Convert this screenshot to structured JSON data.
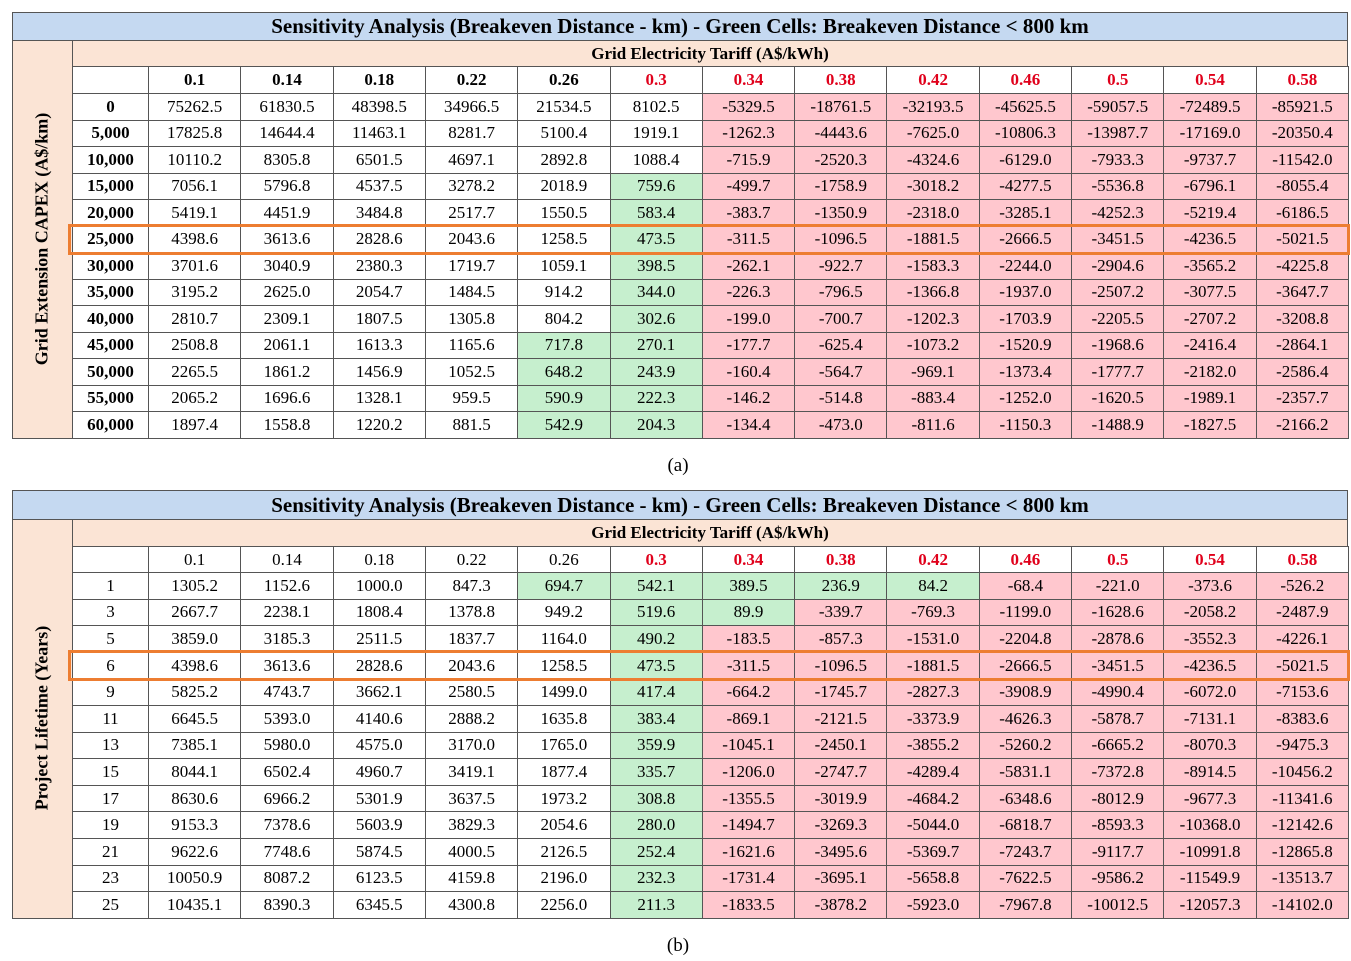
{
  "tables": [
    {
      "title": "Sensitivity Analysis (Breakeven Distance - km) - Green Cells: Breakeven Distance < 800 km",
      "column_group": "Grid Electricity Tariff (A$/kWh)",
      "row_group": "Grid Extension CAPEX (A$/km)",
      "caption": "(a)",
      "bold_headers": true,
      "red_header_from": 5,
      "highlight_row": 5,
      "columns": [
        "0.1",
        "0.14",
        "0.18",
        "0.22",
        "0.26",
        "0.3",
        "0.34",
        "0.38",
        "0.42",
        "0.46",
        "0.5",
        "0.54",
        "0.58"
      ],
      "rows": [
        {
          "label": "0",
          "values": [
            "75262.5",
            "61830.5",
            "48398.5",
            "34966.5",
            "21534.5",
            "8102.5",
            "-5329.5",
            "-18761.5",
            "-32193.5",
            "-45625.5",
            "-59057.5",
            "-72489.5",
            "-85921.5"
          ]
        },
        {
          "label": "5,000",
          "values": [
            "17825.8",
            "14644.4",
            "11463.1",
            "8281.7",
            "5100.4",
            "1919.1",
            "-1262.3",
            "-4443.6",
            "-7625.0",
            "-10806.3",
            "-13987.7",
            "-17169.0",
            "-20350.4"
          ]
        },
        {
          "label": "10,000",
          "values": [
            "10110.2",
            "8305.8",
            "6501.5",
            "4697.1",
            "2892.8",
            "1088.4",
            "-715.9",
            "-2520.3",
            "-4324.6",
            "-6129.0",
            "-7933.3",
            "-9737.7",
            "-11542.0"
          ]
        },
        {
          "label": "15,000",
          "values": [
            "7056.1",
            "5796.8",
            "4537.5",
            "3278.2",
            "2018.9",
            "759.6",
            "-499.7",
            "-1758.9",
            "-3018.2",
            "-4277.5",
            "-5536.8",
            "-6796.1",
            "-8055.4"
          ]
        },
        {
          "label": "20,000",
          "values": [
            "5419.1",
            "4451.9",
            "3484.8",
            "2517.7",
            "1550.5",
            "583.4",
            "-383.7",
            "-1350.9",
            "-2318.0",
            "-3285.1",
            "-4252.3",
            "-5219.4",
            "-6186.5"
          ]
        },
        {
          "label": "25,000",
          "values": [
            "4398.6",
            "3613.6",
            "2828.6",
            "2043.6",
            "1258.5",
            "473.5",
            "-311.5",
            "-1096.5",
            "-1881.5",
            "-2666.5",
            "-3451.5",
            "-4236.5",
            "-5021.5"
          ]
        },
        {
          "label": "30,000",
          "values": [
            "3701.6",
            "3040.9",
            "2380.3",
            "1719.7",
            "1059.1",
            "398.5",
            "-262.1",
            "-922.7",
            "-1583.3",
            "-2244.0",
            "-2904.6",
            "-3565.2",
            "-4225.8"
          ]
        },
        {
          "label": "35,000",
          "values": [
            "3195.2",
            "2625.0",
            "2054.7",
            "1484.5",
            "914.2",
            "344.0",
            "-226.3",
            "-796.5",
            "-1366.8",
            "-1937.0",
            "-2507.2",
            "-3077.5",
            "-3647.7"
          ]
        },
        {
          "label": "40,000",
          "values": [
            "2810.7",
            "2309.1",
            "1807.5",
            "1305.8",
            "804.2",
            "302.6",
            "-199.0",
            "-700.7",
            "-1202.3",
            "-1703.9",
            "-2205.5",
            "-2707.2",
            "-3208.8"
          ]
        },
        {
          "label": "45,000",
          "values": [
            "2508.8",
            "2061.1",
            "1613.3",
            "1165.6",
            "717.8",
            "270.1",
            "-177.7",
            "-625.4",
            "-1073.2",
            "-1520.9",
            "-1968.6",
            "-2416.4",
            "-2864.1"
          ]
        },
        {
          "label": "50,000",
          "values": [
            "2265.5",
            "1861.2",
            "1456.9",
            "1052.5",
            "648.2",
            "243.9",
            "-160.4",
            "-564.7",
            "-969.1",
            "-1373.4",
            "-1777.7",
            "-2182.0",
            "-2586.4"
          ]
        },
        {
          "label": "55,000",
          "values": [
            "2065.2",
            "1696.6",
            "1328.1",
            "959.5",
            "590.9",
            "222.3",
            "-146.2",
            "-514.8",
            "-883.4",
            "-1252.0",
            "-1620.5",
            "-1989.1",
            "-2357.7"
          ]
        },
        {
          "label": "60,000",
          "values": [
            "1897.4",
            "1558.8",
            "1220.2",
            "881.5",
            "542.9",
            "204.3",
            "-134.4",
            "-473.0",
            "-811.6",
            "-1150.3",
            "-1488.9",
            "-1827.5",
            "-2166.2"
          ]
        }
      ]
    },
    {
      "title": "Sensitivity Analysis (Breakeven Distance - km) - Green Cells: Breakeven Distance < 800 km",
      "column_group": "Grid Electricity Tariff (A$/kWh)",
      "row_group": "Project Lifetime (Years)",
      "caption": "(b)",
      "bold_headers": false,
      "red_header_from": 5,
      "highlight_row": 3,
      "columns": [
        "0.1",
        "0.14",
        "0.18",
        "0.22",
        "0.26",
        "0.3",
        "0.34",
        "0.38",
        "0.42",
        "0.46",
        "0.5",
        "0.54",
        "0.58"
      ],
      "rows": [
        {
          "label": "1",
          "values": [
            "1305.2",
            "1152.6",
            "1000.0",
            "847.3",
            "694.7",
            "542.1",
            "389.5",
            "236.9",
            "84.2",
            "-68.4",
            "-221.0",
            "-373.6",
            "-526.2"
          ]
        },
        {
          "label": "3",
          "values": [
            "2667.7",
            "2238.1",
            "1808.4",
            "1378.8",
            "949.2",
            "519.6",
            "89.9",
            "-339.7",
            "-769.3",
            "-1199.0",
            "-1628.6",
            "-2058.2",
            "-2487.9"
          ]
        },
        {
          "label": "5",
          "values": [
            "3859.0",
            "3185.3",
            "2511.5",
            "1837.7",
            "1164.0",
            "490.2",
            "-183.5",
            "-857.3",
            "-1531.0",
            "-2204.8",
            "-2878.6",
            "-3552.3",
            "-4226.1"
          ]
        },
        {
          "label": "6",
          "values": [
            "4398.6",
            "3613.6",
            "2828.6",
            "2043.6",
            "1258.5",
            "473.5",
            "-311.5",
            "-1096.5",
            "-1881.5",
            "-2666.5",
            "-3451.5",
            "-4236.5",
            "-5021.5"
          ]
        },
        {
          "label": "9",
          "values": [
            "5825.2",
            "4743.7",
            "3662.1",
            "2580.5",
            "1499.0",
            "417.4",
            "-664.2",
            "-1745.7",
            "-2827.3",
            "-3908.9",
            "-4990.4",
            "-6072.0",
            "-7153.6"
          ]
        },
        {
          "label": "11",
          "values": [
            "6645.5",
            "5393.0",
            "4140.6",
            "2888.2",
            "1635.8",
            "383.4",
            "-869.1",
            "-2121.5",
            "-3373.9",
            "-4626.3",
            "-5878.7",
            "-7131.1",
            "-8383.6"
          ]
        },
        {
          "label": "13",
          "values": [
            "7385.1",
            "5980.0",
            "4575.0",
            "3170.0",
            "1765.0",
            "359.9",
            "-1045.1",
            "-2450.1",
            "-3855.2",
            "-5260.2",
            "-6665.2",
            "-8070.3",
            "-9475.3"
          ]
        },
        {
          "label": "15",
          "values": [
            "8044.1",
            "6502.4",
            "4960.7",
            "3419.1",
            "1877.4",
            "335.7",
            "-1206.0",
            "-2747.7",
            "-4289.4",
            "-5831.1",
            "-7372.8",
            "-8914.5",
            "-10456.2"
          ]
        },
        {
          "label": "17",
          "values": [
            "8630.6",
            "6966.2",
            "5301.9",
            "3637.5",
            "1973.2",
            "308.8",
            "-1355.5",
            "-3019.9",
            "-4684.2",
            "-6348.6",
            "-8012.9",
            "-9677.3",
            "-11341.6"
          ]
        },
        {
          "label": "19",
          "values": [
            "9153.3",
            "7378.6",
            "5603.9",
            "3829.3",
            "2054.6",
            "280.0",
            "-1494.7",
            "-3269.3",
            "-5044.0",
            "-6818.7",
            "-8593.3",
            "-10368.0",
            "-12142.6"
          ]
        },
        {
          "label": "21",
          "values": [
            "9622.6",
            "7748.6",
            "5874.5",
            "4000.5",
            "2126.5",
            "252.4",
            "-1621.6",
            "-3495.6",
            "-5369.7",
            "-7243.7",
            "-9117.7",
            "-10991.8",
            "-12865.8"
          ]
        },
        {
          "label": "23",
          "values": [
            "10050.9",
            "8087.2",
            "6123.5",
            "4159.8",
            "2196.0",
            "232.3",
            "-1731.4",
            "-3695.1",
            "-5658.8",
            "-7622.5",
            "-9586.2",
            "-11549.9",
            "-13513.7"
          ]
        },
        {
          "label": "25",
          "values": [
            "10435.1",
            "8390.3",
            "6345.5",
            "4300.8",
            "2256.0",
            "211.3",
            "-1833.5",
            "-3878.2",
            "-5923.0",
            "-7967.8",
            "-10012.5",
            "-12057.3",
            "-14102.0"
          ]
        }
      ]
    }
  ],
  "green_below": 800,
  "colors": {
    "green": "#c6efce",
    "red": "#ffc7ce",
    "title": "#c5d9f1",
    "group": "#fbe4d5",
    "red_text": "#e0001b",
    "highlight": "#ed7d31"
  }
}
